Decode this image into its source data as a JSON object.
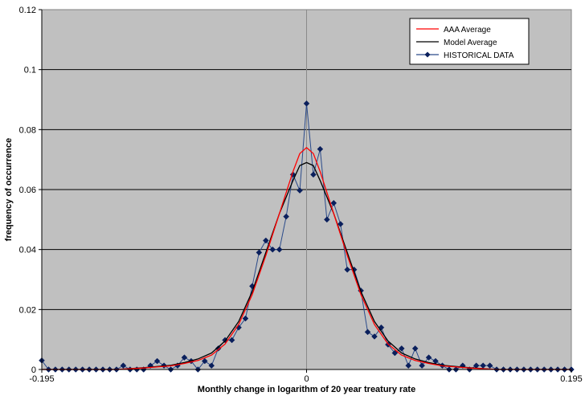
{
  "chart_data": {
    "type": "line",
    "title": "",
    "xlabel": "Monthly change in logarithm of 20 year treatury rate",
    "ylabel": "frequency of occurrence",
    "xlim": [
      -0.195,
      0.195
    ],
    "ylim": [
      0,
      0.12
    ],
    "x_tick_labels": [
      "-0.195",
      "0",
      "0.195"
    ],
    "y_tick_labels": [
      "0",
      "0.02",
      "0.04",
      "0.06",
      "0.08",
      "0.1",
      "0.12"
    ],
    "grid": "horizontal",
    "plot_background": "#c0c0c0",
    "legend_position": "top-right",
    "series": [
      {
        "name": "AAA Average",
        "color": "#ff0000",
        "marker": "none",
        "x": [
          -0.195,
          -0.14,
          -0.12,
          -0.1,
          -0.09,
          -0.08,
          -0.07,
          -0.06,
          -0.05,
          -0.04,
          -0.03,
          -0.02,
          -0.01,
          -0.005,
          0,
          0.005,
          0.01,
          0.02,
          0.03,
          0.04,
          0.05,
          0.06,
          0.07,
          0.08,
          0.09,
          0.1,
          0.12,
          0.14,
          0.195
        ],
        "y": [
          0,
          0,
          0.0005,
          0.0012,
          0.002,
          0.003,
          0.0048,
          0.0085,
          0.015,
          0.025,
          0.038,
          0.052,
          0.066,
          0.072,
          0.074,
          0.072,
          0.066,
          0.052,
          0.038,
          0.025,
          0.015,
          0.0085,
          0.0048,
          0.003,
          0.002,
          0.0012,
          0.0005,
          0,
          0
        ]
      },
      {
        "name": "Model Average",
        "color": "#000000",
        "marker": "none",
        "x": [
          -0.195,
          -0.14,
          -0.12,
          -0.1,
          -0.09,
          -0.08,
          -0.07,
          -0.06,
          -0.05,
          -0.04,
          -0.03,
          -0.02,
          -0.01,
          -0.005,
          0,
          0.005,
          0.01,
          0.02,
          0.03,
          0.04,
          0.05,
          0.06,
          0.07,
          0.08,
          0.09,
          0.1,
          0.12,
          0.14,
          0.195
        ],
        "y": [
          0,
          0,
          0.0006,
          0.0014,
          0.0023,
          0.0035,
          0.0055,
          0.0095,
          0.016,
          0.026,
          0.039,
          0.052,
          0.063,
          0.068,
          0.069,
          0.068,
          0.063,
          0.052,
          0.039,
          0.026,
          0.016,
          0.0095,
          0.0055,
          0.0035,
          0.0023,
          0.0014,
          0.0006,
          0,
          0
        ]
      },
      {
        "name": "HISTORICAL DATA",
        "color": "#2a4a8a",
        "marker": "diamond",
        "marker_color": "#0a1f5c",
        "x": [
          -0.195,
          -0.19,
          -0.185,
          -0.18,
          -0.175,
          -0.17,
          -0.165,
          -0.16,
          -0.155,
          -0.15,
          -0.145,
          -0.14,
          -0.135,
          -0.13,
          -0.125,
          -0.12,
          -0.115,
          -0.11,
          -0.105,
          -0.1,
          -0.095,
          -0.09,
          -0.085,
          -0.08,
          -0.075,
          -0.07,
          -0.065,
          -0.06,
          -0.055,
          -0.05,
          -0.045,
          -0.04,
          -0.035,
          -0.03,
          -0.025,
          -0.02,
          -0.015,
          -0.01,
          -0.005,
          0,
          0.005,
          0.01,
          0.015,
          0.02,
          0.025,
          0.03,
          0.035,
          0.04,
          0.045,
          0.05,
          0.055,
          0.06,
          0.065,
          0.07,
          0.075,
          0.08,
          0.085,
          0.09,
          0.095,
          0.1,
          0.105,
          0.11,
          0.115,
          0.12,
          0.125,
          0.13,
          0.135,
          0.14,
          0.145,
          0.15,
          0.155,
          0.16,
          0.165,
          0.17,
          0.175,
          0.18,
          0.185,
          0.19,
          0.195
        ],
        "y": [
          0.003,
          0,
          0,
          0,
          0,
          0,
          0,
          0,
          0,
          0,
          0,
          0,
          0.0013,
          0,
          0,
          0,
          0.0013,
          0.0028,
          0.0013,
          0,
          0.0013,
          0.004,
          0.0028,
          0,
          0.0028,
          0.0013,
          0.007,
          0.0098,
          0.0098,
          0.014,
          0.017,
          0.0278,
          0.039,
          0.043,
          0.04,
          0.04,
          0.051,
          0.065,
          0.0597,
          0.0887,
          0.065,
          0.0735,
          0.05,
          0.0555,
          0.0485,
          0.0333,
          0.0333,
          0.0263,
          0.0125,
          0.011,
          0.014,
          0.0083,
          0.0055,
          0.007,
          0.0013,
          0.007,
          0.0013,
          0.004,
          0.0028,
          0.0013,
          0,
          0,
          0.0013,
          0,
          0.0013,
          0.0013,
          0.0013,
          0,
          0,
          0,
          0,
          0,
          0,
          0,
          0,
          0,
          0,
          0,
          0
        ]
      }
    ]
  }
}
